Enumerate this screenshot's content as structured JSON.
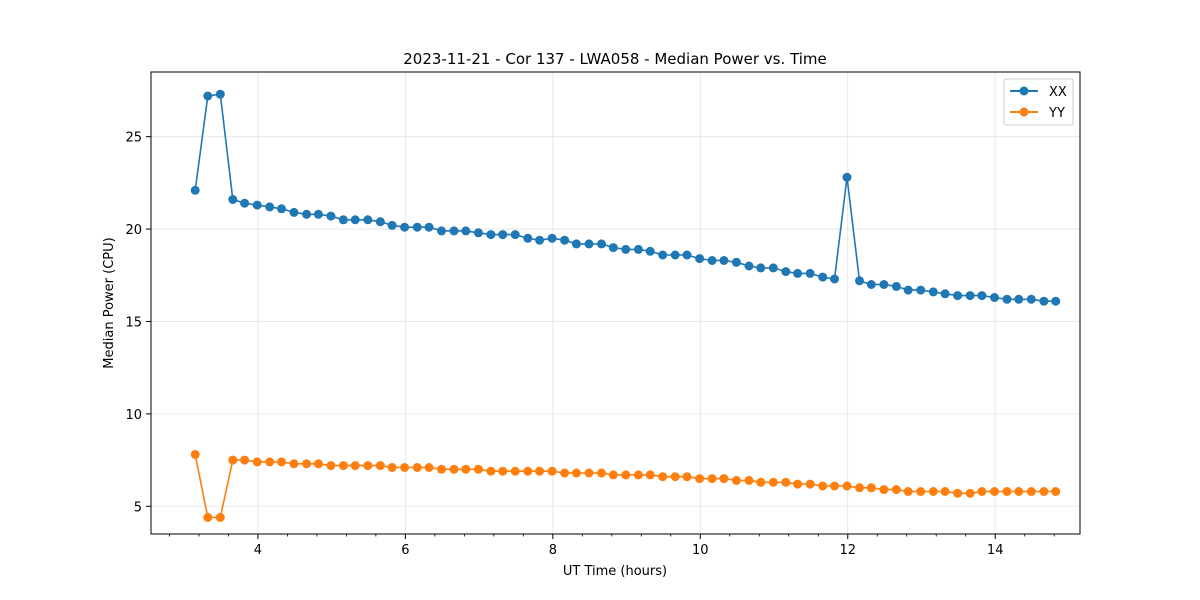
{
  "chart_data": {
    "type": "line",
    "title": "2023-11-21 - Cor 137 - LWA058 - Median Power vs. Time",
    "xlabel": "UT Time (hours)",
    "ylabel": "Median Power (CPU)",
    "xlim": [
      2.55,
      15.15
    ],
    "ylim": [
      3.5,
      28.5
    ],
    "xticks": [
      4,
      6,
      8,
      10,
      12,
      14
    ],
    "xtick_labels": [
      "4",
      "6",
      "8",
      "10",
      "12",
      "14"
    ],
    "x_minor_step": 0.4,
    "yticks": [
      5,
      10,
      15,
      20,
      25
    ],
    "ytick_labels": [
      "5",
      "10",
      "15",
      "20",
      "25"
    ],
    "grid": true,
    "legend_position": "upper-right",
    "x": [
      3.15,
      3.32,
      3.49,
      3.66,
      3.82,
      3.99,
      4.16,
      4.32,
      4.49,
      4.66,
      4.82,
      4.99,
      5.16,
      5.32,
      5.49,
      5.66,
      5.82,
      5.99,
      6.16,
      6.32,
      6.49,
      6.66,
      6.82,
      6.99,
      7.16,
      7.32,
      7.49,
      7.66,
      7.82,
      7.99,
      8.16,
      8.32,
      8.49,
      8.66,
      8.82,
      8.99,
      9.16,
      9.32,
      9.49,
      9.66,
      9.82,
      9.99,
      10.16,
      10.32,
      10.49,
      10.66,
      10.82,
      10.99,
      11.16,
      11.32,
      11.49,
      11.66,
      11.82,
      11.99,
      12.16,
      12.32,
      12.49,
      12.66,
      12.82,
      12.99,
      13.16,
      13.32,
      13.49,
      13.66,
      13.82,
      13.99,
      14.16,
      14.32,
      14.49,
      14.66,
      14.82
    ],
    "series": [
      {
        "name": "XX",
        "color": "#1f77b4",
        "values": [
          22.1,
          27.2,
          27.3,
          21.6,
          21.4,
          21.3,
          21.2,
          21.1,
          20.9,
          20.8,
          20.8,
          20.7,
          20.5,
          20.5,
          20.5,
          20.4,
          20.2,
          20.1,
          20.1,
          20.1,
          19.9,
          19.9,
          19.9,
          19.8,
          19.7,
          19.7,
          19.7,
          19.5,
          19.4,
          19.5,
          19.4,
          19.2,
          19.2,
          19.2,
          19.0,
          18.9,
          18.9,
          18.8,
          18.6,
          18.6,
          18.6,
          18.4,
          18.3,
          18.3,
          18.2,
          18.0,
          17.9,
          17.9,
          17.7,
          17.6,
          17.6,
          17.4,
          17.3,
          22.8,
          17.2,
          17.0,
          17.0,
          16.9,
          16.7,
          16.7,
          16.6,
          16.5,
          16.4,
          16.4,
          16.4,
          16.3,
          16.2,
          16.2,
          16.2,
          16.1,
          16.1
        ]
      },
      {
        "name": "YY",
        "color": "#ff7f0e",
        "values": [
          7.8,
          4.4,
          4.4,
          7.5,
          7.5,
          7.4,
          7.4,
          7.4,
          7.3,
          7.3,
          7.3,
          7.2,
          7.2,
          7.2,
          7.2,
          7.2,
          7.1,
          7.1,
          7.1,
          7.1,
          7.0,
          7.0,
          7.0,
          7.0,
          6.9,
          6.9,
          6.9,
          6.9,
          6.9,
          6.9,
          6.8,
          6.8,
          6.8,
          6.8,
          6.7,
          6.7,
          6.7,
          6.7,
          6.6,
          6.6,
          6.6,
          6.5,
          6.5,
          6.5,
          6.4,
          6.4,
          6.3,
          6.3,
          6.3,
          6.2,
          6.2,
          6.1,
          6.1,
          6.1,
          6.0,
          6.0,
          5.9,
          5.9,
          5.8,
          5.8,
          5.8,
          5.8,
          5.7,
          5.7,
          5.8,
          5.8,
          5.8,
          5.8,
          5.8,
          5.8,
          5.8
        ]
      }
    ]
  }
}
